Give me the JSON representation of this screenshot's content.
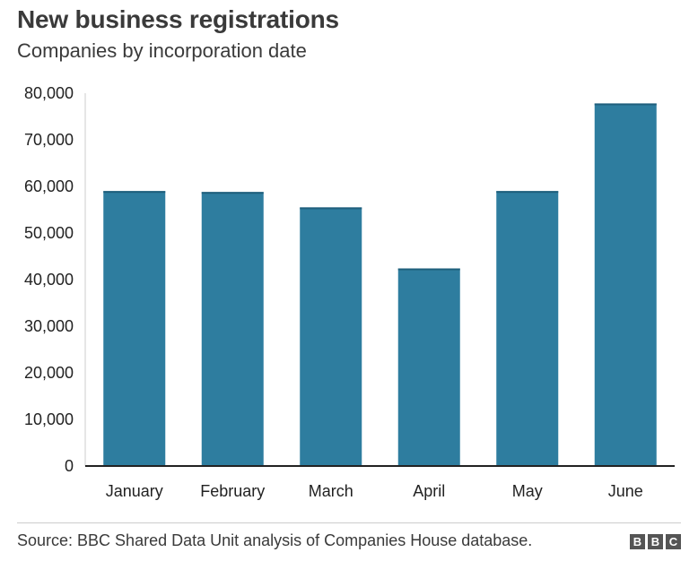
{
  "title": "New business registrations",
  "subtitle": "Companies by incorporation date",
  "source": "Source: BBC Shared Data Unit analysis of Companies House database.",
  "logo": [
    "B",
    "B",
    "C"
  ],
  "colors": {
    "bar": "#2e7d9f",
    "axis": "#222222",
    "grid": "#dddddd"
  },
  "chart_data": {
    "type": "bar",
    "title": "New business registrations",
    "subtitle": "Companies by incorporation date",
    "xlabel": "",
    "ylabel": "",
    "categories": [
      "January",
      "February",
      "March",
      "April",
      "May",
      "June"
    ],
    "values": [
      59000,
      58800,
      55500,
      42400,
      59000,
      77800
    ],
    "ylim": [
      0,
      80000
    ],
    "yticks": [
      0,
      10000,
      20000,
      30000,
      40000,
      50000,
      60000,
      70000,
      80000
    ],
    "ytick_labels": [
      "0",
      "10,000",
      "20,000",
      "30,000",
      "40,000",
      "50,000",
      "60,000",
      "70,000",
      "80,000"
    ],
    "grid": false,
    "legend": "none"
  }
}
